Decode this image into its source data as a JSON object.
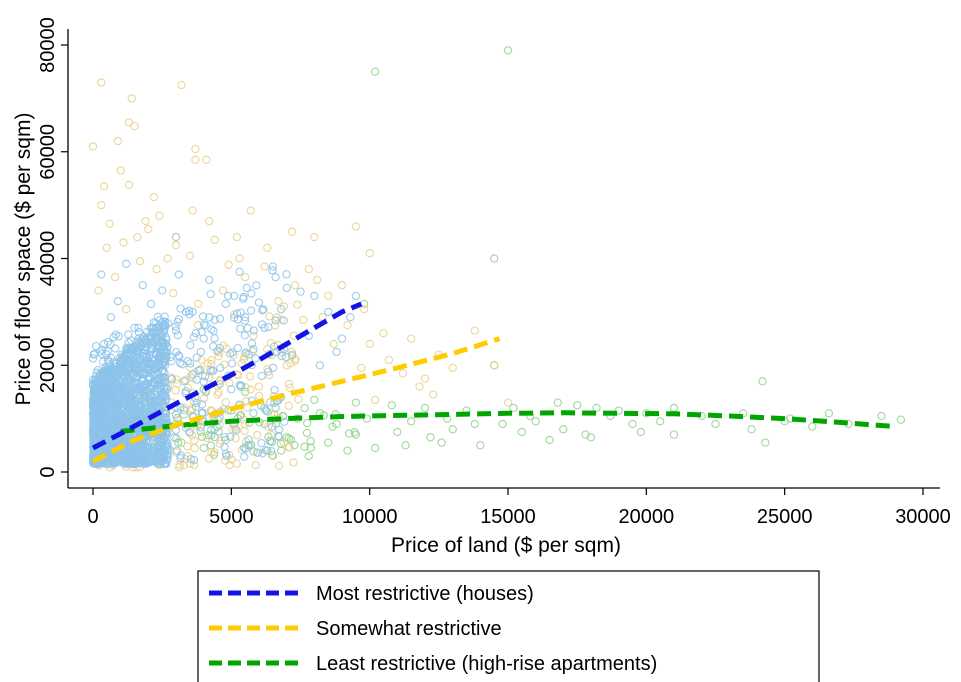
{
  "chart_data": {
    "type": "scatter",
    "xlabel": "Price of land ($ per sqm)",
    "ylabel": "Price of floor space ($ per sqm)",
    "xlim": [
      -500,
      30000
    ],
    "ylim": [
      -2000,
      82000
    ],
    "xticks": [
      0,
      5000,
      10000,
      15000,
      20000,
      25000,
      30000
    ],
    "yticks": [
      0,
      20000,
      40000,
      60000,
      80000
    ],
    "grid": false,
    "legend_placement": "bottom",
    "series": [
      {
        "name": "Most restrictive (houses)",
        "marker_color": "#8dc3ea",
        "line_color": "#1414e6",
        "fit": [
          [
            0,
            4500
          ],
          [
            1000,
            7200
          ],
          [
            2000,
            10000
          ],
          [
            3000,
            12800
          ],
          [
            4000,
            15500
          ],
          [
            5000,
            18200
          ],
          [
            6000,
            21000
          ],
          [
            7000,
            24000
          ],
          [
            8000,
            27000
          ],
          [
            9000,
            30000
          ],
          [
            9700,
            31500
          ]
        ],
        "points": [
          [
            1200,
            39000
          ],
          [
            300,
            37000
          ],
          [
            2500,
            34000
          ],
          [
            5100,
            33000
          ],
          [
            6500,
            38500
          ],
          [
            7000,
            34500
          ],
          [
            8000,
            33000
          ],
          [
            8500,
            30000
          ],
          [
            9500,
            33000
          ],
          [
            7800,
            25500
          ],
          [
            6200,
            27000
          ],
          [
            4200,
            36000
          ],
          [
            3100,
            37000
          ],
          [
            1800,
            35000
          ],
          [
            900,
            32000
          ],
          [
            5500,
            29000
          ],
          [
            4800,
            31500
          ],
          [
            3600,
            30000
          ],
          [
            2200,
            28000
          ],
          [
            1500,
            27000
          ],
          [
            650,
            29000
          ],
          [
            4000,
            25000
          ],
          [
            3000,
            26500
          ],
          [
            5800,
            23000
          ],
          [
            7200,
            22000
          ],
          [
            6800,
            30500
          ],
          [
            5300,
            37500
          ],
          [
            9000,
            25000
          ],
          [
            8200,
            20000
          ],
          [
            400,
            24000
          ],
          [
            2800,
            21500
          ],
          [
            1000,
            20500
          ],
          [
            3300,
            17000
          ],
          [
            2000,
            15000
          ],
          [
            4600,
            19500
          ],
          [
            5000,
            15500
          ],
          [
            6100,
            18000
          ],
          [
            250,
            18500
          ],
          [
            700,
            14000
          ],
          [
            1500,
            12500
          ],
          [
            150,
            9500
          ],
          [
            300,
            6500
          ],
          [
            800,
            4000
          ],
          [
            500,
            2500
          ],
          [
            2600,
            11000
          ],
          [
            3900,
            22500
          ],
          [
            7500,
            33800
          ],
          [
            6600,
            36500
          ],
          [
            8800,
            22500
          ],
          [
            9300,
            29000
          ],
          [
            4400,
            28500
          ],
          [
            2100,
            31500
          ]
        ],
        "cluster": {
          "x_max": 2700,
          "y_min": 1500,
          "y_max": 30000
        }
      },
      {
        "name": "Somewhat restrictive",
        "marker_color": "#e8cf8a",
        "line_color": "#ffcc00",
        "fit": [
          [
            0,
            2000
          ],
          [
            1500,
            6000
          ],
          [
            3000,
            8800
          ],
          [
            5000,
            11800
          ],
          [
            7000,
            14500
          ],
          [
            9000,
            17000
          ],
          [
            11000,
            19500
          ],
          [
            13000,
            22200
          ],
          [
            14700,
            25000
          ]
        ],
        "points": [
          [
            300,
            73000
          ],
          [
            3200,
            72500
          ],
          [
            1400,
            70000
          ],
          [
            1300,
            65500
          ],
          [
            1500,
            64800
          ],
          [
            900,
            62000
          ],
          [
            0,
            61000
          ],
          [
            3700,
            60500
          ],
          [
            3700,
            58500
          ],
          [
            4100,
            58500
          ],
          [
            1000,
            56500
          ],
          [
            1300,
            53800
          ],
          [
            400,
            53500
          ],
          [
            2200,
            51500
          ],
          [
            300,
            50000
          ],
          [
            3600,
            49000
          ],
          [
            2400,
            48000
          ],
          [
            4200,
            47000
          ],
          [
            5700,
            49000
          ],
          [
            1900,
            47000
          ],
          [
            9500,
            46000
          ],
          [
            7200,
            45000
          ],
          [
            8000,
            44000
          ],
          [
            5200,
            44000
          ],
          [
            10000,
            41000
          ],
          [
            1100,
            43000
          ],
          [
            3000,
            42500
          ],
          [
            6300,
            42000
          ],
          [
            2700,
            40000
          ],
          [
            4900,
            38800
          ],
          [
            7800,
            38000
          ],
          [
            5500,
            36500
          ],
          [
            9000,
            35000
          ],
          [
            8500,
            33000
          ],
          [
            6900,
            31000
          ],
          [
            7600,
            28500
          ],
          [
            10500,
            26000
          ],
          [
            11500,
            25000
          ],
          [
            12500,
            22000
          ],
          [
            13000,
            19500
          ],
          [
            14500,
            20000
          ],
          [
            13800,
            26500
          ],
          [
            11800,
            16000
          ],
          [
            10200,
            13500
          ],
          [
            12000,
            17500
          ],
          [
            15000,
            13000
          ],
          [
            6300,
            23000
          ],
          [
            3800,
            27500
          ],
          [
            4700,
            34000
          ],
          [
            2300,
            38000
          ],
          [
            800,
            36500
          ],
          [
            500,
            42000
          ],
          [
            1600,
            44000
          ],
          [
            5800,
            25500
          ],
          [
            7000,
            20000
          ],
          [
            8700,
            24000
          ],
          [
            9700,
            19500
          ],
          [
            6000,
            16000
          ],
          [
            4500,
            14500
          ],
          [
            3300,
            12000
          ],
          [
            2500,
            9000
          ],
          [
            1800,
            6000
          ],
          [
            1000,
            4000
          ],
          [
            500,
            2000
          ],
          [
            1200,
            1000
          ],
          [
            3800,
            31500
          ],
          [
            2900,
            33500
          ],
          [
            1200,
            30500
          ],
          [
            200,
            34000
          ],
          [
            6700,
            32000
          ],
          [
            5100,
            29500
          ],
          [
            8300,
            29000
          ],
          [
            7300,
            35000
          ],
          [
            9200,
            27500
          ],
          [
            3500,
            40500
          ],
          [
            4400,
            43500
          ],
          [
            1700,
            39500
          ],
          [
            600,
            46500
          ],
          [
            2000,
            45500
          ],
          [
            5300,
            40000
          ],
          [
            6200,
            38500
          ],
          [
            8100,
            36000
          ],
          [
            9800,
            30500
          ],
          [
            10700,
            21000
          ],
          [
            11200,
            18500
          ],
          [
            12300,
            14500
          ],
          [
            10000,
            24000
          ]
        ]
      },
      {
        "name": "Least restrictive (high-rise apartments)",
        "marker_color": "#8ed18a",
        "line_color": "#00a600",
        "fit": [
          [
            1000,
            7600
          ],
          [
            3000,
            8700
          ],
          [
            5000,
            9500
          ],
          [
            7000,
            10000
          ],
          [
            9000,
            10400
          ],
          [
            11000,
            10600
          ],
          [
            13000,
            10800
          ],
          [
            15000,
            11000
          ],
          [
            17000,
            11100
          ],
          [
            19000,
            11000
          ],
          [
            21000,
            10900
          ],
          [
            23000,
            10500
          ],
          [
            25000,
            10000
          ],
          [
            27000,
            9300
          ],
          [
            29000,
            8500
          ]
        ],
        "points": [
          [
            15000,
            79000
          ],
          [
            10200,
            75000
          ],
          [
            14500,
            40000
          ],
          [
            9800,
            31500
          ],
          [
            3000,
            44000
          ],
          [
            14500,
            20000
          ],
          [
            24200,
            17000
          ],
          [
            2500,
            17000
          ],
          [
            4000,
            15500
          ],
          [
            5500,
            15000
          ],
          [
            6800,
            14000
          ],
          [
            8000,
            13500
          ],
          [
            9500,
            13000
          ],
          [
            10800,
            12500
          ],
          [
            12000,
            12000
          ],
          [
            13500,
            11500
          ],
          [
            15200,
            12000
          ],
          [
            16800,
            13000
          ],
          [
            17500,
            12500
          ],
          [
            18200,
            12000
          ],
          [
            19000,
            11500
          ],
          [
            20000,
            11000
          ],
          [
            21000,
            12000
          ],
          [
            22000,
            10500
          ],
          [
            23500,
            11000
          ],
          [
            25000,
            9500
          ],
          [
            28500,
            10500
          ],
          [
            29200,
            9800
          ],
          [
            26000,
            8500
          ],
          [
            24300,
            5500
          ],
          [
            21000,
            7000
          ],
          [
            19500,
            9000
          ],
          [
            18000,
            6500
          ],
          [
            16500,
            6000
          ],
          [
            15500,
            7500
          ],
          [
            14000,
            5000
          ],
          [
            13000,
            8000
          ],
          [
            12200,
            6500
          ],
          [
            11000,
            7500
          ],
          [
            10200,
            4500
          ],
          [
            9500,
            7000
          ],
          [
            8500,
            5500
          ],
          [
            7800,
            3000
          ],
          [
            7000,
            6500
          ],
          [
            6300,
            4000
          ],
          [
            5600,
            5000
          ],
          [
            4800,
            6000
          ],
          [
            4000,
            4500
          ],
          [
            3200,
            5500
          ],
          [
            2400,
            6000
          ],
          [
            1600,
            7000
          ],
          [
            1000,
            8000
          ],
          [
            2000,
            9500
          ],
          [
            3600,
            10500
          ],
          [
            5000,
            11500
          ],
          [
            6200,
            9000
          ],
          [
            7400,
            10000
          ],
          [
            8800,
            9000
          ],
          [
            9900,
            10000
          ],
          [
            11500,
            9500
          ],
          [
            12800,
            10000
          ],
          [
            13800,
            9000
          ],
          [
            16000,
            9500
          ],
          [
            17000,
            8000
          ],
          [
            18700,
            10500
          ],
          [
            20500,
            9500
          ],
          [
            22500,
            9000
          ],
          [
            23800,
            8000
          ],
          [
            25200,
            10000
          ],
          [
            27300,
            9000
          ],
          [
            26600,
            11000
          ],
          [
            19800,
            7500
          ],
          [
            17800,
            7000
          ],
          [
            15800,
            10500
          ],
          [
            14800,
            9000
          ],
          [
            12600,
            5500
          ],
          [
            11300,
            5000
          ],
          [
            9200,
            4000
          ],
          [
            8200,
            11000
          ],
          [
            6600,
            12000
          ],
          [
            4400,
            8000
          ],
          [
            3000,
            9000
          ],
          [
            2200,
            4000
          ],
          [
            1400,
            3000
          ],
          [
            500,
            5000
          ]
        ]
      }
    ]
  }
}
